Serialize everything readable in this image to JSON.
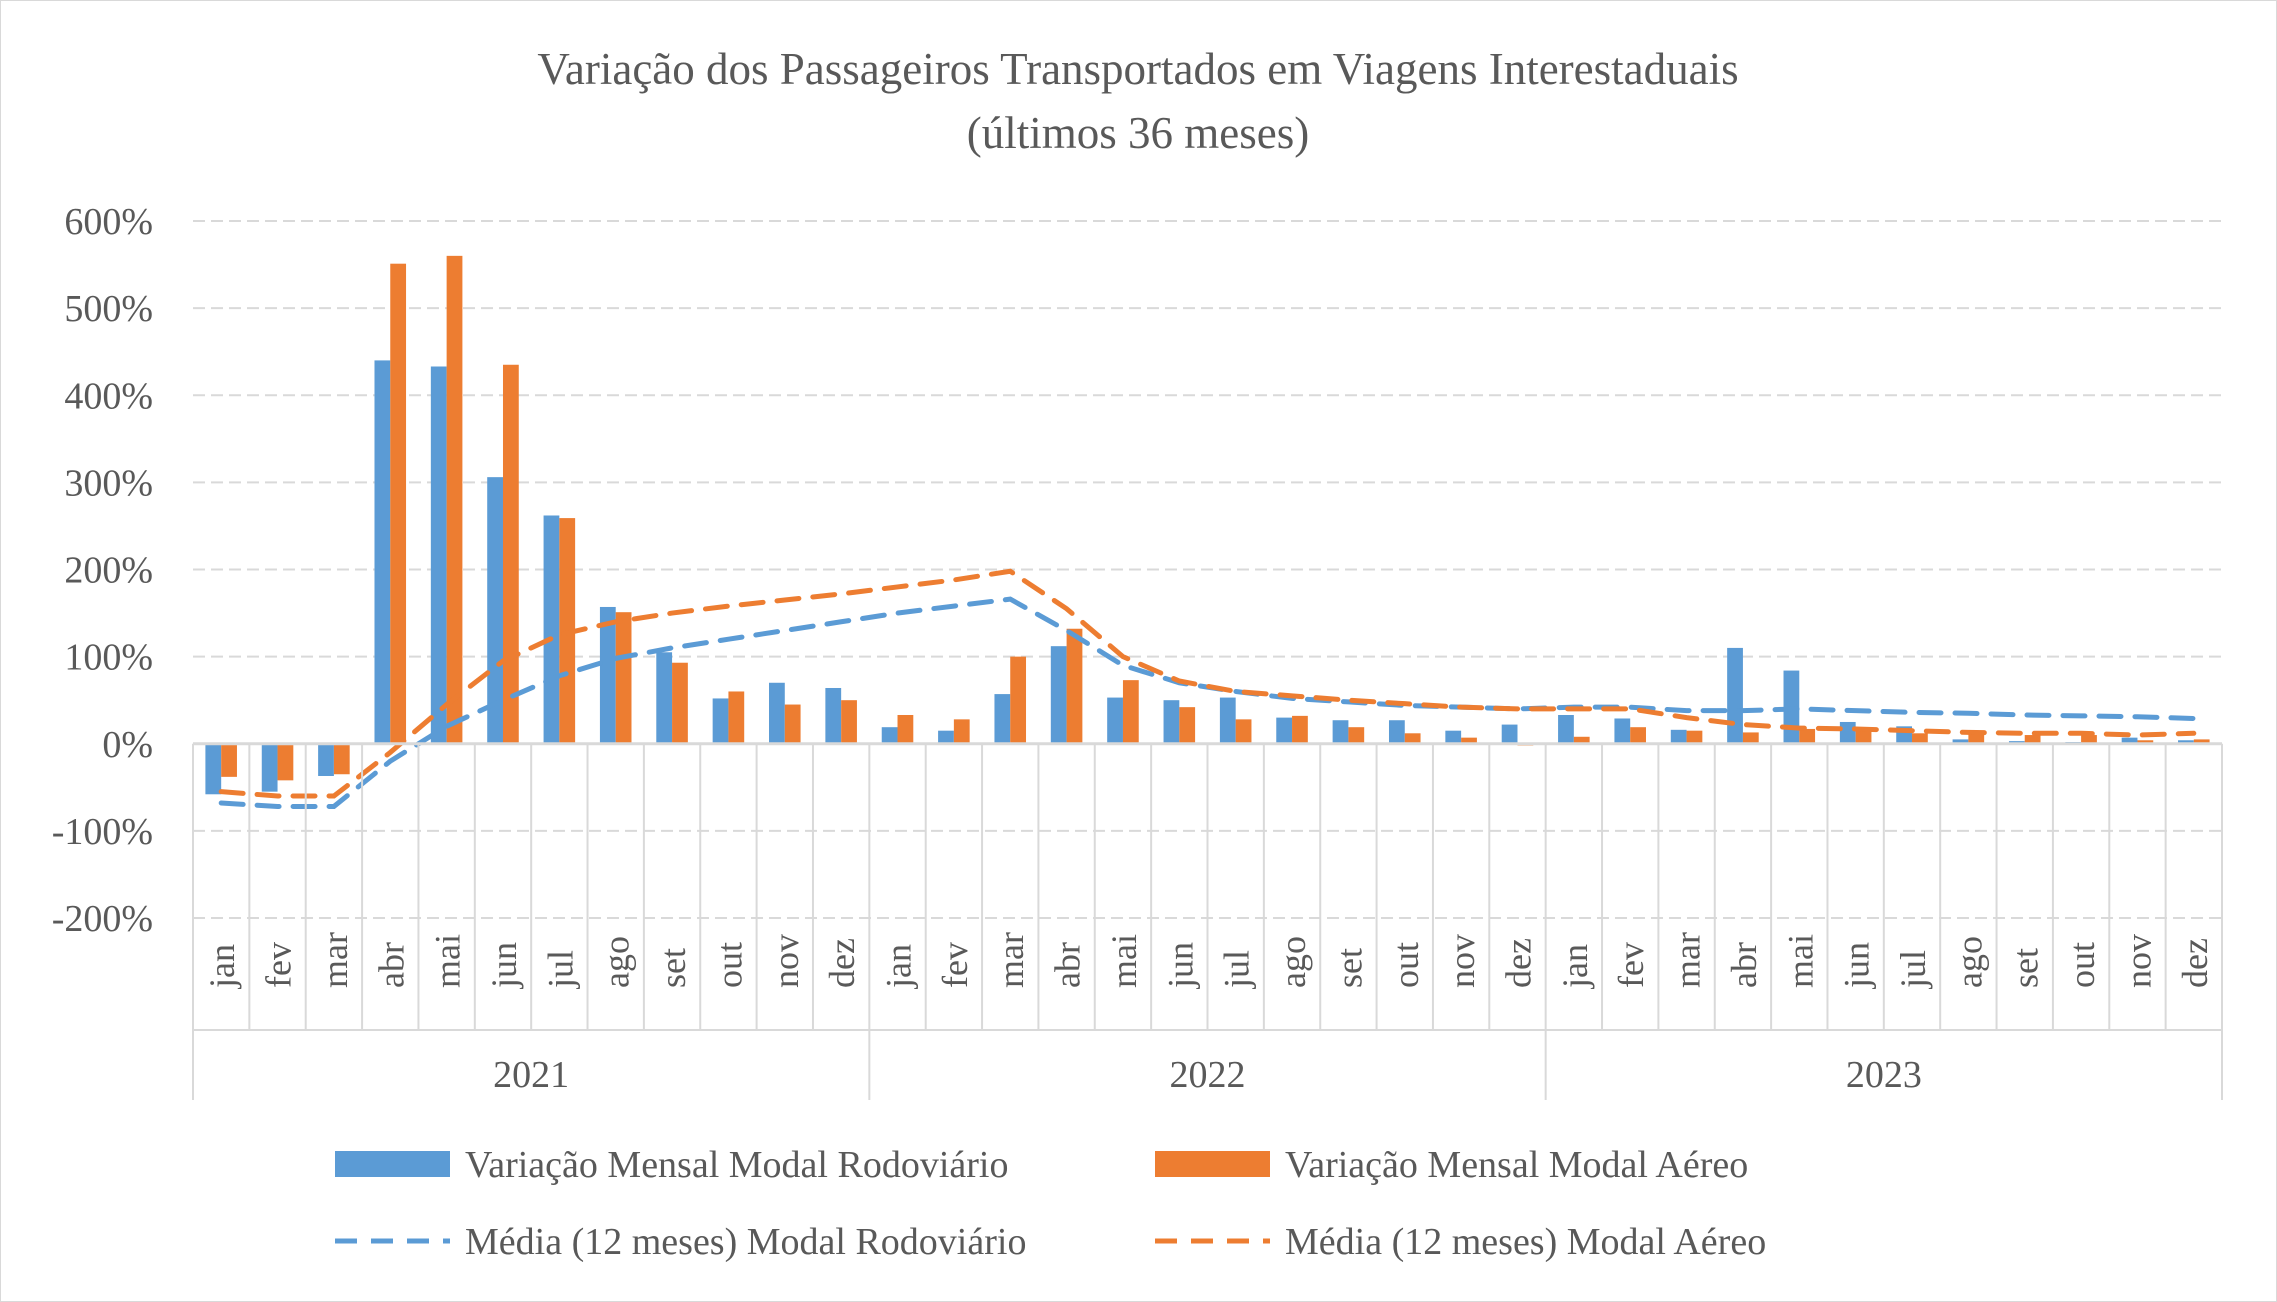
{
  "chart_data": {
    "type": "bar",
    "title": "Variação dos Passageiros Transportados em Viagens Interestaduais",
    "subtitle": "(últimos 36 meses)",
    "xlabel": "",
    "ylabel": "",
    "ylim": [
      -200,
      600
    ],
    "yticks": [
      "600%",
      "500%",
      "400%",
      "300%",
      "200%",
      "100%",
      "0%",
      "-100%",
      "-200%"
    ],
    "ytick_values": [
      600,
      500,
      400,
      300,
      200,
      100,
      0,
      -100,
      -200
    ],
    "grid": true,
    "legend_position": "bottom",
    "months": [
      "jan",
      "fev",
      "mar",
      "abr",
      "mai",
      "jun",
      "jul",
      "ago",
      "set",
      "out",
      "nov",
      "dez"
    ],
    "years": [
      "2021",
      "2022",
      "2023"
    ],
    "series": [
      {
        "name": "Variação Mensal Modal Rodoviário",
        "kind": "bar",
        "color": "#5b9bd5",
        "values": [
          -58,
          -55,
          -37,
          440,
          433,
          306,
          262,
          157,
          105,
          52,
          70,
          64,
          19,
          15,
          57,
          112,
          53,
          50,
          53,
          30,
          27,
          27,
          15,
          22,
          33,
          29,
          16,
          110,
          84,
          25,
          20,
          5,
          3,
          2,
          7,
          4
        ]
      },
      {
        "name": "Variação Mensal Modal Aéreo",
        "kind": "bar",
        "color": "#ed7d31",
        "values": [
          -38,
          -42,
          -35,
          551,
          560,
          435,
          259,
          151,
          93,
          60,
          45,
          50,
          33,
          28,
          100,
          132,
          73,
          42,
          28,
          32,
          19,
          12,
          7,
          -2,
          8,
          19,
          15,
          13,
          17,
          18,
          12,
          14,
          10,
          10,
          4,
          5
        ]
      },
      {
        "name": "Média (12 meses) Modal Rodoviário",
        "kind": "dashed-line",
        "color": "#5b9bd5",
        "values": [
          -68,
          -72,
          -72,
          -20,
          20,
          50,
          78,
          98,
          110,
          120,
          130,
          140,
          150,
          158,
          166,
          130,
          90,
          70,
          60,
          52,
          48,
          44,
          42,
          40,
          42,
          42,
          38,
          38,
          40,
          38,
          36,
          35,
          33,
          32,
          31,
          29
        ]
      },
      {
        "name": "Média (12 meses) Modal Aéreo",
        "kind": "dashed-line",
        "color": "#ed7d31",
        "values": [
          -55,
          -60,
          -60,
          -10,
          45,
          95,
          125,
          140,
          150,
          158,
          165,
          172,
          180,
          188,
          198,
          155,
          100,
          72,
          60,
          55,
          50,
          46,
          42,
          40,
          40,
          40,
          30,
          22,
          18,
          17,
          15,
          13,
          12,
          12,
          10,
          12
        ]
      }
    ]
  }
}
